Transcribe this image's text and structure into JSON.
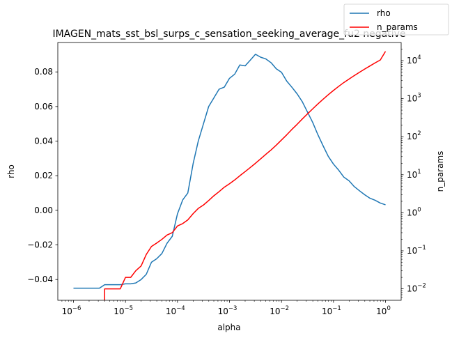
{
  "chart_data": {
    "type": "line",
    "title": "IMAGEN_mats_sst_bsl_surps_c_sensation_seeking_average_fu2 negative",
    "xlabel": "alpha",
    "ylabel": "rho",
    "y2label": "n_params",
    "xscale": "log",
    "y2scale": "log",
    "xlim": [
      5e-07,
      2
    ],
    "ylim": [
      -0.052,
      0.097
    ],
    "y2lim": [
      0.005,
      30000
    ],
    "grid": false,
    "legend_placement": "top-right",
    "x_ticks": [
      {
        "base": "10",
        "exp": "−6",
        "value": 1e-06
      },
      {
        "base": "10",
        "exp": "−5",
        "value": 1e-05
      },
      {
        "base": "10",
        "exp": "−4",
        "value": 0.0001
      },
      {
        "base": "10",
        "exp": "−3",
        "value": 0.001
      },
      {
        "base": "10",
        "exp": "−2",
        "value": 0.01
      },
      {
        "base": "10",
        "exp": "−1",
        "value": 0.1
      },
      {
        "base": "10",
        "exp": "0",
        "value": 1
      }
    ],
    "y_ticks": [
      {
        "label": "−0.04",
        "value": -0.04
      },
      {
        "label": "−0.02",
        "value": -0.02
      },
      {
        "label": "0.00",
        "value": 0.0
      },
      {
        "label": "0.02",
        "value": 0.02
      },
      {
        "label": "0.04",
        "value": 0.04
      },
      {
        "label": "0.06",
        "value": 0.06
      },
      {
        "label": "0.08",
        "value": 0.08
      }
    ],
    "y2_ticks": [
      {
        "base": "10",
        "exp": "−2",
        "value": 0.01
      },
      {
        "base": "10",
        "exp": "−1",
        "value": 0.1
      },
      {
        "base": "10",
        "exp": "0",
        "value": 1
      },
      {
        "base": "10",
        "exp": "1",
        "value": 10
      },
      {
        "base": "10",
        "exp": "2",
        "value": 100
      },
      {
        "base": "10",
        "exp": "3",
        "value": 1000
      },
      {
        "base": "10",
        "exp": "4",
        "value": 10000
      }
    ],
    "series": [
      {
        "name": "rho",
        "axis": "left",
        "color": "#1f77b4",
        "x": [
          1e-06,
          1.26e-06,
          1.58e-06,
          2e-06,
          2.51e-06,
          3.16e-06,
          3.98e-06,
          5.01e-06,
          6.31e-06,
          7.94e-06,
          1e-05,
          1.26e-05,
          1.58e-05,
          2e-05,
          2.51e-05,
          3.16e-05,
          3.98e-05,
          5.01e-05,
          6.31e-05,
          7.94e-05,
          0.0001,
          0.000126,
          0.000158,
          0.0002,
          0.000251,
          0.000316,
          0.000398,
          0.000501,
          0.000631,
          0.000794,
          0.001,
          0.00126,
          0.00158,
          0.002,
          0.00251,
          0.00316,
          0.00398,
          0.00501,
          0.00631,
          0.00794,
          0.01,
          0.0126,
          0.0158,
          0.02,
          0.0251,
          0.0316,
          0.0398,
          0.0501,
          0.0631,
          0.0794,
          0.1,
          0.126,
          0.158,
          0.2,
          0.251,
          0.316,
          0.398,
          0.501,
          0.631,
          0.794,
          1.0
        ],
        "y": [
          -0.045,
          -0.045,
          -0.045,
          -0.045,
          -0.045,
          -0.045,
          -0.043,
          -0.043,
          -0.043,
          -0.043,
          -0.0425,
          -0.0425,
          -0.042,
          -0.04,
          -0.037,
          -0.03,
          -0.028,
          -0.025,
          -0.019,
          -0.015,
          -0.002,
          0.006,
          0.01,
          0.027,
          0.04,
          0.05,
          0.06,
          0.065,
          0.07,
          0.0712,
          0.0763,
          0.0787,
          0.084,
          0.0835,
          0.0868,
          0.0902,
          0.0885,
          0.0875,
          0.0853,
          0.0818,
          0.0798,
          0.0747,
          0.0712,
          0.0673,
          0.0628,
          0.0568,
          0.0508,
          0.0437,
          0.0373,
          0.0312,
          0.0267,
          0.0232,
          0.0192,
          0.017,
          0.0137,
          0.0113,
          0.009,
          0.007,
          0.0058,
          0.0042,
          0.0032
        ]
      },
      {
        "name": "n_params",
        "axis": "right",
        "color": "#ff0000",
        "x": [
          3.98e-06,
          3.98e-06,
          5.01e-06,
          6.31e-06,
          7.94e-06,
          1e-05,
          1.26e-05,
          1.58e-05,
          2e-05,
          2.51e-05,
          3.16e-05,
          3.98e-05,
          5.01e-05,
          6.31e-05,
          7.94e-05,
          0.0001,
          0.000126,
          0.000158,
          0.0002,
          0.000251,
          0.000316,
          0.000398,
          0.000501,
          0.000631,
          0.000794,
          0.001,
          0.00126,
          0.00158,
          0.002,
          0.00251,
          0.00316,
          0.00398,
          0.00501,
          0.00631,
          0.00794,
          0.01,
          0.0126,
          0.0158,
          0.02,
          0.0251,
          0.0316,
          0.0398,
          0.0501,
          0.0631,
          0.0794,
          0.1,
          0.126,
          0.158,
          0.2,
          0.251,
          0.316,
          0.398,
          0.501,
          0.631,
          0.794,
          1.0
        ],
        "y": [
          0.005,
          0.01,
          0.01,
          0.01,
          0.01,
          0.02,
          0.02,
          0.03,
          0.04,
          0.08,
          0.13,
          0.16,
          0.2,
          0.26,
          0.3,
          0.45,
          0.52,
          0.65,
          0.95,
          1.3,
          1.6,
          2.1,
          2.8,
          3.6,
          4.7,
          5.8,
          7.3,
          9.4,
          12.1,
          15.5,
          20,
          26.3,
          34.5,
          45,
          60,
          82,
          112,
          155,
          212,
          292,
          398,
          540,
          727,
          965,
          1270,
          1650,
          2110,
          2660,
          3300,
          4050,
          4950,
          6000,
          7250,
          8720,
          10400,
          17500
        ]
      }
    ]
  }
}
